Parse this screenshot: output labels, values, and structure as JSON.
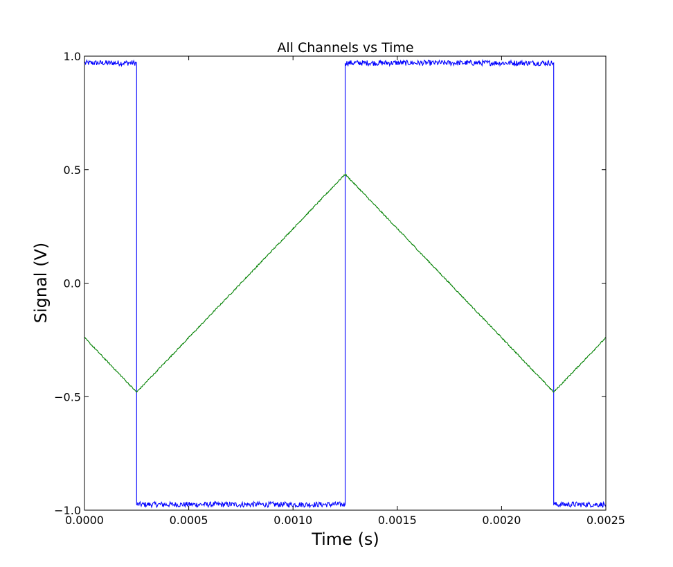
{
  "chart_data": {
    "type": "line",
    "title": "All Channels vs Time",
    "xlabel": "Time (s)",
    "ylabel": "Signal (V)",
    "xlim": [
      0.0,
      0.0025
    ],
    "ylim": [
      -1.0,
      1.0
    ],
    "grid": false,
    "xticks": [
      0.0,
      0.0005,
      0.001,
      0.0015,
      0.002,
      0.0025
    ],
    "xtick_labels": [
      "0.0000",
      "0.0005",
      "0.0010",
      "0.0015",
      "0.0020",
      "0.0025"
    ],
    "yticks": [
      -1.0,
      -0.5,
      0.0,
      0.5,
      1.0
    ],
    "ytick_labels": [
      "−1.0",
      "−0.5",
      "0.0",
      "0.5",
      "1.0"
    ],
    "series": [
      {
        "color": "#0000ff",
        "x": [
          0.0,
          0.00025,
          0.00025,
          0.00125,
          0.00125,
          0.00225,
          0.00225,
          0.0025
        ],
        "y": [
          0.97,
          0.97,
          -0.975,
          -0.975,
          0.97,
          0.97,
          -0.975,
          -0.975
        ]
      },
      {
        "color": "#008000",
        "x": [
          0.0,
          0.00025,
          0.00125,
          0.00225,
          0.0025
        ],
        "y": [
          -0.24,
          -0.48,
          0.48,
          -0.48,
          -0.24
        ]
      }
    ]
  }
}
